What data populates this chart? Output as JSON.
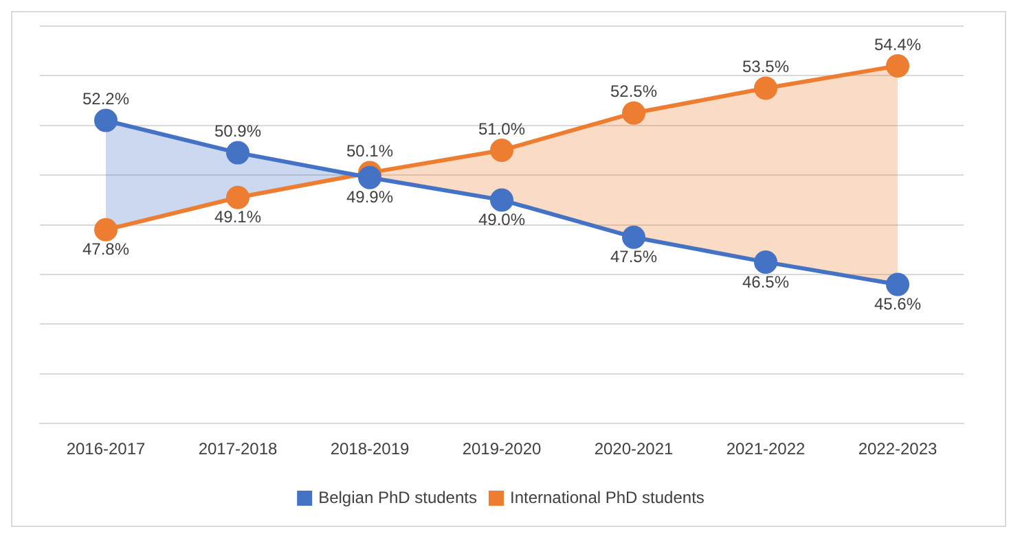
{
  "chart_data": {
    "type": "line",
    "categories": [
      "2016-2017",
      "2017-2018",
      "2018-2019",
      "2019-2020",
      "2020-2021",
      "2021-2022",
      "2022-2023"
    ],
    "series": [
      {
        "name": "Belgian PhD students",
        "color": "#4472c4",
        "values": [
          52.2,
          50.9,
          49.9,
          49.0,
          47.5,
          46.5,
          45.6
        ],
        "value_labels": [
          "52.2%",
          "50.9%",
          "49.9%",
          "49.0%",
          "47.5%",
          "46.5%",
          "45.6%"
        ],
        "lower": [
          47.8,
          49.1,
          50.0,
          null,
          null,
          null,
          null
        ],
        "upper": [
          52.2,
          50.9,
          50.0,
          null,
          null,
          null,
          null
        ]
      },
      {
        "name": "International PhD students",
        "color": "#ed7d31",
        "values": [
          47.8,
          49.1,
          50.1,
          51.0,
          52.5,
          53.5,
          54.4
        ],
        "value_labels": [
          "47.8%",
          "49.1%",
          "50.1%",
          "51.0%",
          "52.5%",
          "53.5%",
          "54.4%"
        ],
        "lower": [
          null,
          null,
          50.0,
          49.0,
          47.5,
          46.5,
          45.6
        ],
        "upper": [
          null,
          null,
          50.0,
          51.0,
          52.5,
          53.5,
          54.4
        ]
      }
    ],
    "ylim": [
      40,
      56
    ],
    "yticks": [
      {
        "value": 40,
        "label": null
      },
      {
        "value": 42,
        "label": null
      },
      {
        "value": 44,
        "label": null
      },
      {
        "value": 46,
        "label": null
      },
      {
        "value": 48,
        "label": null
      },
      {
        "value": 50,
        "label": null
      },
      {
        "value": 52,
        "label": null
      },
      {
        "value": 54,
        "label": null
      },
      {
        "value": 56,
        "label": null
      }
    ],
    "tick_labels": "x",
    "grid": "y",
    "legend": "bottom",
    "marker": "circle",
    "line_style": "solid"
  }
}
